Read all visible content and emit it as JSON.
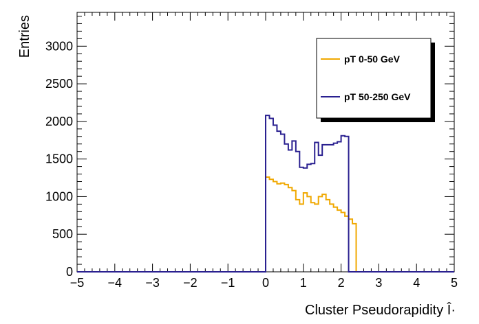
{
  "chart_data": {
    "type": "line",
    "xlabel": "Cluster Pseudorapidity Î·",
    "ylabel": "Entries",
    "xlim": [
      -5,
      5
    ],
    "ylim": [
      0,
      3450
    ],
    "x_ticks": [
      -5,
      -4,
      -3,
      -2,
      -1,
      0,
      1,
      2,
      3,
      4,
      5
    ],
    "x_tick_labels": [
      "−5",
      "−4",
      "−3",
      "−2",
      "−1",
      "0",
      "1",
      "2",
      "3",
      "4",
      "5"
    ],
    "y_ticks": [
      0,
      500,
      1000,
      1500,
      2000,
      2500,
      3000
    ],
    "y_tick_labels": [
      "0",
      "500",
      "1000",
      "1500",
      "2000",
      "2500",
      "3000"
    ],
    "bin_width": 0.1,
    "legend_position": "top-right",
    "series": [
      {
        "name": "pT 0-50 GeV",
        "color": "#f0a800",
        "x_start": 0.0,
        "values": [
          1260,
          1230,
          1200,
          1170,
          1180,
          1160,
          1120,
          1080,
          960,
          900,
          1050,
          1000,
          920,
          900,
          1000,
          1030,
          960,
          900,
          860,
          820,
          790,
          740,
          700,
          640
        ]
      },
      {
        "name": "pT 50-250 GeV",
        "color": "#2a2090",
        "x_start": 0.0,
        "values": [
          2080,
          2040,
          1950,
          1870,
          1830,
          1700,
          1620,
          1740,
          1600,
          1390,
          1380,
          1430,
          1440,
          1720,
          1550,
          1690,
          1690,
          1690,
          1710,
          1730,
          1810,
          1800
        ]
      }
    ]
  }
}
